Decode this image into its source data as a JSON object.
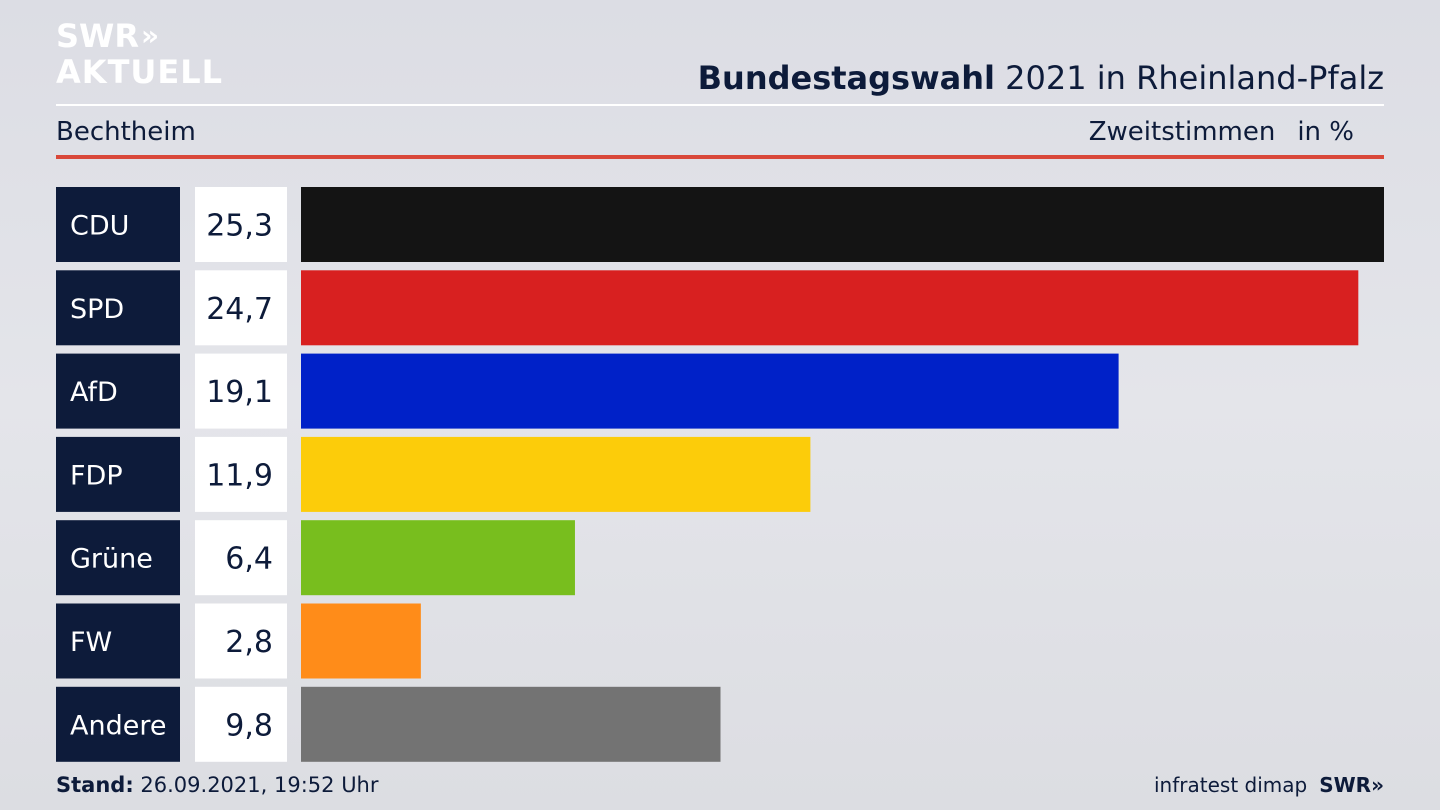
{
  "branding": {
    "logo_line1": "SWR",
    "logo_line2": "AKTUELL",
    "footer_brand": "SWR",
    "source": "infratest dimap"
  },
  "header": {
    "title_bold": "Bundestagswahl",
    "title_rest": "2021 in Rheinland-Pfalz",
    "location": "Bechtheim",
    "vote_type": "Zweitstimmen",
    "unit": "in %"
  },
  "footer": {
    "stand_label": "Stand:",
    "stand_value": "26.09.2021, 19:52 Uhr"
  },
  "chart_data": {
    "type": "bar",
    "orientation": "horizontal",
    "categories": [
      "CDU",
      "SPD",
      "AfD",
      "FDP",
      "Grüne",
      "FW",
      "Andere"
    ],
    "values": [
      25.3,
      24.7,
      19.1,
      11.9,
      6.4,
      2.8,
      9.8
    ],
    "value_labels": [
      "25,3",
      "24,7",
      "19,1",
      "11,9",
      "6,4",
      "2,8",
      "9,8"
    ],
    "colors": [
      "#141414",
      "#d82020",
      "#0021c8",
      "#fccc0a",
      "#78be1e",
      "#ff8c19",
      "#737373"
    ],
    "xlim": [
      0,
      25.3
    ],
    "grid": false,
    "legend": "none"
  }
}
